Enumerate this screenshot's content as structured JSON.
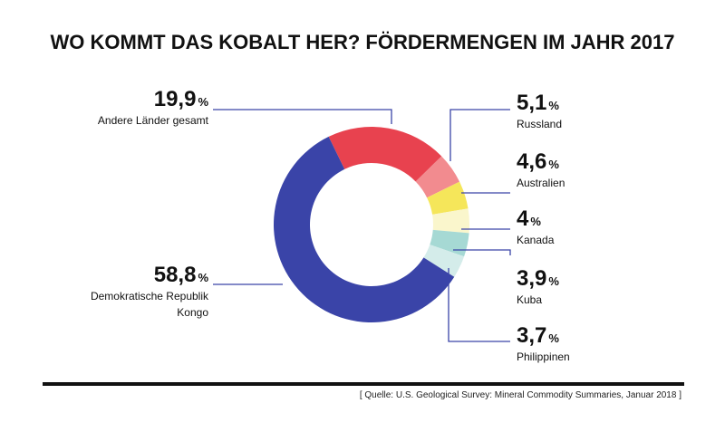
{
  "chart_data": {
    "type": "pie",
    "title": "WO KOMMT DAS KOBALT HER? FÖRDERMENGEN IM JAHR 2017",
    "categories": [
      "Andere Länder gesamt",
      "Russland",
      "Australien",
      "Kanada",
      "Kuba",
      "Philippinen",
      "Demokratische Republik Kongo"
    ],
    "values": [
      19.9,
      5.1,
      4.6,
      4,
      3.9,
      3.7,
      58.8
    ],
    "value_labels": [
      "19,9",
      "5,1",
      "4,6",
      "4",
      "3,9",
      "3,7",
      "58,8"
    ],
    "unit": "%",
    "colors": [
      "#e8424f",
      "#f28b8f",
      "#f5e65a",
      "#faf6cc",
      "#a6d9d4",
      "#d4ecea",
      "#3a44a8"
    ],
    "source": "[ Quelle: U.S. Geological Survey: Mineral Commodity Summaries, Januar 2018 ]"
  }
}
